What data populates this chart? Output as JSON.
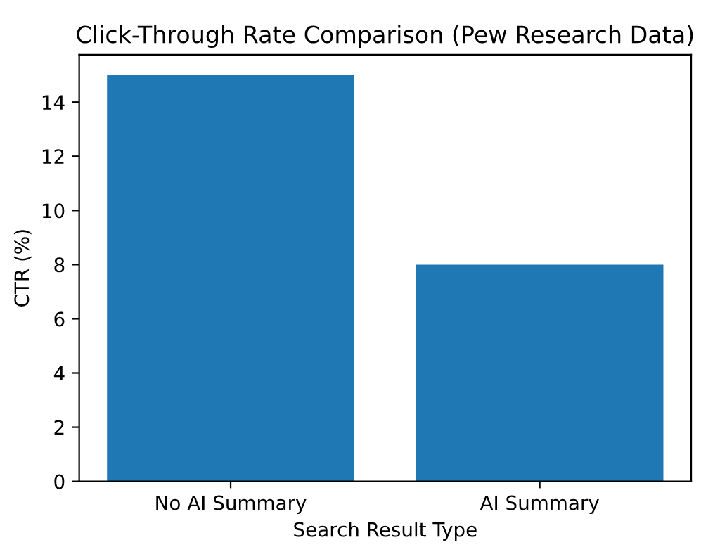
{
  "chart_data": {
    "type": "bar",
    "title": "Click-Through Rate Comparison (Pew Research Data)",
    "categories": [
      "No AI Summary",
      "AI Summary"
    ],
    "values": [
      15,
      8
    ],
    "color": "#1f77b4",
    "xlabel": "Search Result Type",
    "ylabel": "CTR (%)",
    "ylim": [
      0,
      15.75
    ],
    "yticks": [
      0,
      2,
      4,
      6,
      8,
      10,
      12,
      14
    ],
    "grid": false
  }
}
